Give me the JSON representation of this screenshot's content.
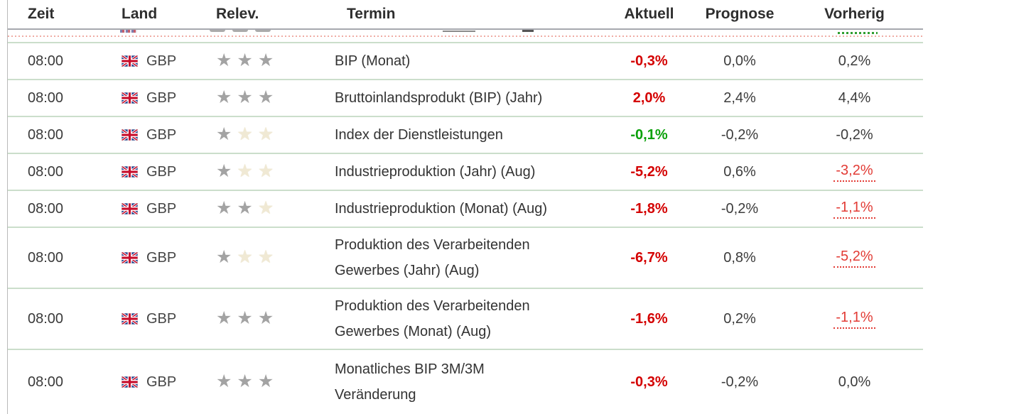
{
  "table": {
    "columns": {
      "zeit": "Zeit",
      "land": "Land",
      "relev": "Relev.",
      "termin": "Termin",
      "aktuell": "Aktuell",
      "prognose": "Prognose",
      "vorherig": "Vorherig"
    },
    "rows": [
      {
        "zeit": "08:00",
        "land": "GBP",
        "relevance": 3,
        "termin": "BIP (Monat)",
        "aktuell": "-0,3%",
        "aktuell_state": "negative",
        "prognose": "0,0%",
        "vorherig": "0,2%",
        "vorherig_revised": false,
        "tall": false
      },
      {
        "zeit": "08:00",
        "land": "GBP",
        "relevance": 3,
        "termin": "Bruttoinlandsprodukt (BIP) (Jahr)",
        "aktuell": "2,0%",
        "aktuell_state": "negative",
        "prognose": "2,4%",
        "vorherig": "4,4%",
        "vorherig_revised": false,
        "tall": false
      },
      {
        "zeit": "08:00",
        "land": "GBP",
        "relevance": 1,
        "termin": "Index der Dienstleistungen",
        "aktuell": "-0,1%",
        "aktuell_state": "positive",
        "prognose": "-0,2%",
        "vorherig": "-0,2%",
        "vorherig_revised": false,
        "tall": false
      },
      {
        "zeit": "08:00",
        "land": "GBP",
        "relevance": 1,
        "termin": "Industrieproduktion (Jahr) (Aug)",
        "aktuell": "-5,2%",
        "aktuell_state": "negative",
        "prognose": "0,6%",
        "vorherig": "-3,2%",
        "vorherig_revised": true,
        "tall": false
      },
      {
        "zeit": "08:00",
        "land": "GBP",
        "relevance": 2,
        "termin": "Industrieproduktion (Monat) (Aug)",
        "aktuell": "-1,8%",
        "aktuell_state": "negative",
        "prognose": "-0,2%",
        "vorherig": "-1,1%",
        "vorherig_revised": true,
        "tall": false
      },
      {
        "zeit": "08:00",
        "land": "GBP",
        "relevance": 1,
        "termin": "Produktion des Verarbeitenden\nGewerbes (Jahr) (Aug)",
        "aktuell": "-6,7%",
        "aktuell_state": "negative",
        "prognose": "0,8%",
        "vorherig": "-5,2%",
        "vorherig_revised": true,
        "tall": true
      },
      {
        "zeit": "08:00",
        "land": "GBP",
        "relevance": 3,
        "termin": "Produktion des Verarbeitenden\nGewerbes (Monat) (Aug)",
        "aktuell": "-1,6%",
        "aktuell_state": "negative",
        "prognose": "0,2%",
        "vorherig": "-1,1%",
        "vorherig_revised": true,
        "tall": true
      },
      {
        "zeit": "08:00",
        "land": "GBP",
        "relevance": 3,
        "termin": "Monatliches BIP 3M/3M\nVeränderung",
        "aktuell": "-0,3%",
        "aktuell_state": "negative",
        "prognose": "-0,2%",
        "vorherig": "0,0%",
        "vorherig_revised": false,
        "tall": true
      }
    ],
    "partial_top_row": {
      "visible": true,
      "current_time_marker": true,
      "vorherig_green_dotted_underline": true
    },
    "colors": {
      "negative": "#d40000",
      "positive": "#0aa10a",
      "revised": "#e23b35",
      "time_marker": "#efaca4",
      "green_underline": "#2f9e2f",
      "row_border": "#cbdecb",
      "header_border": "#a6a8ae",
      "star_filled": "#a3a3a3",
      "star_empty": "#f0e9d4",
      "text": "#333333"
    },
    "icons": {
      "flag": "united-kingdom-flag-icon",
      "star": "relevance-star-icon"
    }
  }
}
